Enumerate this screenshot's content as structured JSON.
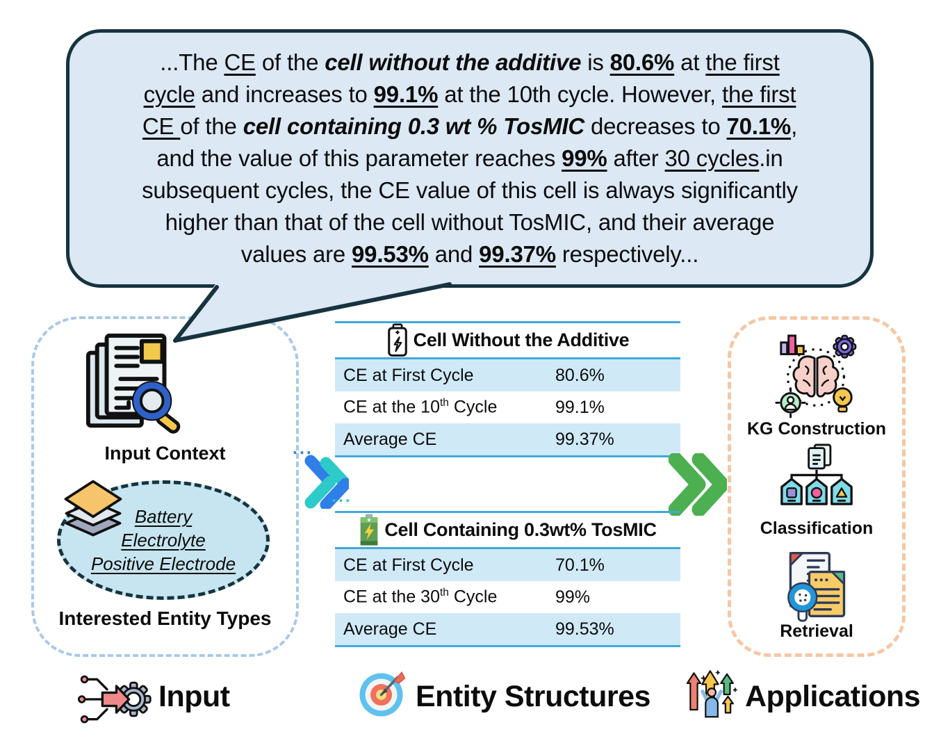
{
  "colors": {
    "bubble_fill": "#dce8f4",
    "bubble_border": "#16333f",
    "table_line": "#3fa9dc",
    "row_shade": "#cfe9f7",
    "left_panel_border": "#a9c9e7",
    "right_panel_border": "#f6c7a4",
    "ellipse_fill": "#c6e5f0",
    "chevron_blue": "#2f7fe8",
    "chevron_teal": "#2ec9c9",
    "chevron_green": "#4caf50"
  },
  "bubble": {
    "lines": [
      [
        {
          "t": "...The "
        },
        {
          "t": "CE",
          "u": true
        },
        {
          "t": " of the "
        },
        {
          "t": "cell without the additive",
          "b": true,
          "i": true
        },
        {
          "t": " is "
        },
        {
          "t": "80.6%",
          "b": true,
          "u": true
        },
        {
          "t": " at "
        },
        {
          "t": "the first",
          "u": true
        }
      ],
      [
        {
          "t": "cycle",
          "u": true
        },
        {
          "t": " and increases to "
        },
        {
          "t": "99.1%",
          "b": true,
          "u": true
        },
        {
          "t": " at the 10th cycle. However, "
        },
        {
          "t": "the first",
          "u": true
        }
      ],
      [
        {
          "t": "CE ",
          "u": true
        },
        {
          "t": "of the "
        },
        {
          "t": "cell containing 0.3 wt % TosMIC",
          "b": true,
          "i": true
        },
        {
          "t": " decreases to "
        },
        {
          "t": "70.1%",
          "b": true,
          "u": true
        },
        {
          "t": ","
        }
      ],
      [
        {
          "t": "and the value of this parameter reaches "
        },
        {
          "t": "99%",
          "b": true,
          "u": true
        },
        {
          "t": " after "
        },
        {
          "t": "30 cycles",
          "u": true
        },
        {
          "t": ".in"
        }
      ],
      [
        {
          "t": "subsequent cycles, the CE value of this cell is always significantly"
        }
      ],
      [
        {
          "t": "higher than that of the cell without TosMIC, and their average"
        }
      ],
      [
        {
          "t": "values are "
        },
        {
          "t": "99.53%",
          "b": true,
          "u": true
        },
        {
          "t": " and "
        },
        {
          "t": "99.37%",
          "b": true,
          "u": true
        },
        {
          "t": " respectively..."
        }
      ]
    ]
  },
  "left_panel": {
    "input_context_label": "Input Context",
    "entity_types": [
      "Battery",
      "Electrolyte",
      "Positive Electrode"
    ],
    "entity_types_label": "Interested Entity Types"
  },
  "middle": {
    "dots_top": "...",
    "dots_bottom": "..."
  },
  "tables": [
    {
      "icon": "battery-outline-icon",
      "title": "Cell Without the Additive",
      "rows": [
        {
          "pre": "CE at First Cycle",
          "sup": "",
          "post": "",
          "value": "80.6%",
          "shaded": true
        },
        {
          "pre": "CE at the 10",
          "sup": "th",
          "post": " Cycle",
          "value": "99.1%",
          "shaded": false
        },
        {
          "pre": "Average CE",
          "sup": "",
          "post": "",
          "value": "99.37%",
          "shaded": true
        }
      ]
    },
    {
      "icon": "battery-green-icon",
      "title": "Cell Containing 0.3wt% TosMIC",
      "rows": [
        {
          "pre": "CE at First Cycle",
          "sup": "",
          "post": "",
          "value": "70.1%",
          "shaded": true
        },
        {
          "pre": "CE at the 30",
          "sup": "th",
          "post": " Cycle",
          "value": "99%",
          "shaded": false
        },
        {
          "pre": "Average CE",
          "sup": "",
          "post": "",
          "value": "99.53%",
          "shaded": true
        }
      ]
    }
  ],
  "right_panel": {
    "items": [
      {
        "icon": "kg-construction-icon",
        "label": "KG Construction"
      },
      {
        "icon": "classification-icon",
        "label": "Classification"
      },
      {
        "icon": "retrieval-icon",
        "label": "Retrieval"
      }
    ]
  },
  "legend": {
    "input": "Input",
    "entity_structures": "Entity Structures",
    "applications": "Applications"
  }
}
